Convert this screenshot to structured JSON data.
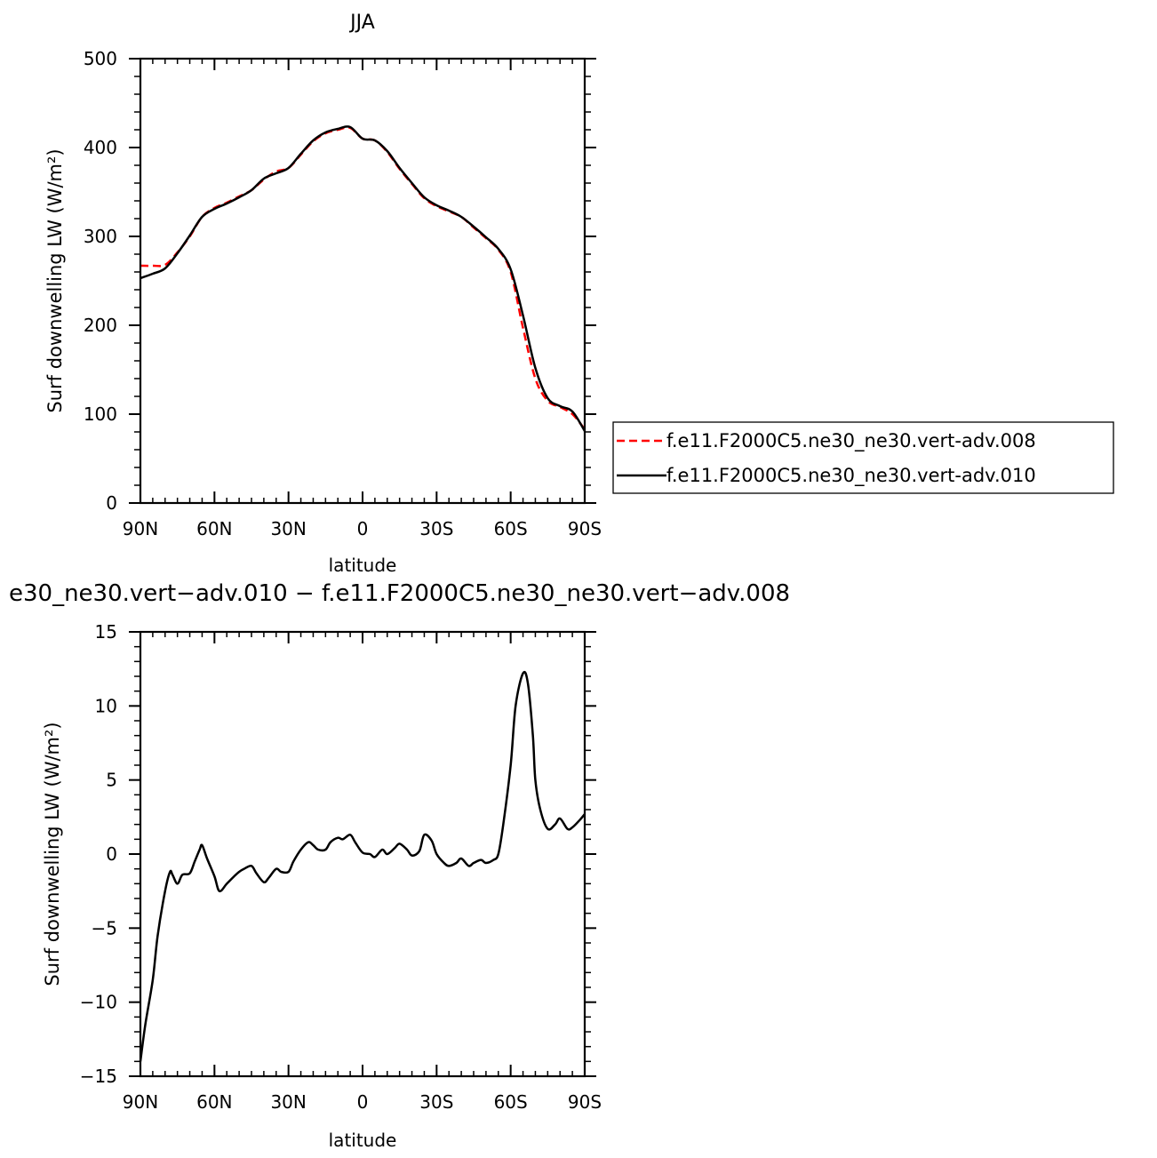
{
  "chart_data": [
    {
      "type": "line",
      "title": "JJA",
      "xlabel": "latitude",
      "ylabel": "Surf downwelling LW (W/m²)",
      "xlim": [
        -90,
        90
      ],
      "ylim": [
        0,
        500
      ],
      "x_ticks": [
        {
          "value": -90,
          "label": "90N"
        },
        {
          "value": -60,
          "label": "60N"
        },
        {
          "value": -30,
          "label": "30N"
        },
        {
          "value": 0,
          "label": "0"
        },
        {
          "value": 30,
          "label": "30S"
        },
        {
          "value": 60,
          "label": "60S"
        },
        {
          "value": 90,
          "label": "90S"
        }
      ],
      "y_ticks": [
        {
          "value": 0,
          "label": "0"
        },
        {
          "value": 100,
          "label": "100"
        },
        {
          "value": 200,
          "label": "200"
        },
        {
          "value": 300,
          "label": "300"
        },
        {
          "value": 400,
          "label": "400"
        },
        {
          "value": 500,
          "label": "500"
        }
      ],
      "grid": false,
      "legend_position": "right",
      "x": [
        -90,
        -85,
        -80,
        -75,
        -70,
        -65,
        -60,
        -55,
        -50,
        -45,
        -40,
        -35,
        -30,
        -25,
        -20,
        -15,
        -10,
        -5,
        0,
        5,
        10,
        15,
        20,
        25,
        30,
        35,
        40,
        45,
        50,
        55,
        60,
        65,
        70,
        75,
        80,
        85,
        90
      ],
      "series": [
        {
          "name": "f.e11.F2000C5.ne30_ne30.vert-adv.008",
          "color": "#ff0000",
          "dash": "dashed",
          "values": [
            267,
            267,
            268,
            282,
            300,
            322,
            332,
            338,
            345,
            352,
            364,
            373,
            377,
            392,
            407,
            416,
            420,
            422,
            410,
            408,
            395,
            376,
            359,
            343,
            334,
            328,
            322,
            310,
            298,
            285,
            260,
            197,
            140,
            115,
            108,
            100,
            83
          ]
        },
        {
          "name": "f.e11.F2000C5.ne30_ne30.vert-adv.010",
          "color": "#000000",
          "dash": "solid",
          "values": [
            253,
            258,
            264,
            281,
            301,
            322,
            331,
            337,
            344,
            352,
            365,
            371,
            377,
            393,
            408,
            417,
            421,
            423,
            410,
            408,
            396,
            377,
            360,
            344,
            335,
            329,
            322,
            311,
            299,
            286,
            263,
            211,
            152,
            118,
            109,
            103,
            81
          ]
        }
      ]
    },
    {
      "type": "line",
      "title": "e30_ne30.vert−adv.010 − f.e11.F2000C5.ne30_ne30.vert−adv.008",
      "xlabel": "latitude",
      "ylabel": "Surf downwelling LW (W/m²)",
      "xlim": [
        -90,
        90
      ],
      "ylim": [
        -15,
        15
      ],
      "x_ticks": [
        {
          "value": -90,
          "label": "90N"
        },
        {
          "value": -60,
          "label": "60N"
        },
        {
          "value": -30,
          "label": "30N"
        },
        {
          "value": 0,
          "label": "0"
        },
        {
          "value": 30,
          "label": "30S"
        },
        {
          "value": 60,
          "label": "60S"
        },
        {
          "value": 90,
          "label": "90S"
        }
      ],
      "y_ticks": [
        {
          "value": -15,
          "label": "−15"
        },
        {
          "value": -10,
          "label": "−10"
        },
        {
          "value": -5,
          "label": "−5"
        },
        {
          "value": 0,
          "label": "0"
        },
        {
          "value": 5,
          "label": "5"
        },
        {
          "value": 10,
          "label": "10"
        },
        {
          "value": 15,
          "label": "15"
        }
      ],
      "grid": false,
      "x": [
        -90,
        -88,
        -85,
        -83,
        -80,
        -78,
        -77,
        -75,
        -73,
        -70,
        -68,
        -66,
        -65,
        -63,
        -60,
        -58,
        -55,
        -52,
        -50,
        -48,
        -45,
        -43,
        -40,
        -38,
        -35,
        -33,
        -30,
        -28,
        -25,
        -22,
        -20,
        -18,
        -15,
        -13,
        -10,
        -8,
        -5,
        -3,
        0,
        3,
        5,
        8,
        10,
        13,
        15,
        18,
        20,
        23,
        25,
        28,
        30,
        33,
        35,
        38,
        40,
        43,
        45,
        48,
        50,
        53,
        55,
        57,
        60,
        62,
        65,
        67,
        69,
        70,
        72,
        75,
        78,
        80,
        83,
        85,
        88,
        90
      ],
      "series": [
        {
          "name": "",
          "color": "#000000",
          "dash": "solid",
          "values": [
            -14.0,
            -11.5,
            -8.5,
            -5.5,
            -2.5,
            -1.2,
            -1.4,
            -2.0,
            -1.4,
            -1.3,
            -0.5,
            0.3,
            0.6,
            -0.3,
            -1.5,
            -2.5,
            -2.0,
            -1.5,
            -1.2,
            -1.0,
            -0.8,
            -1.3,
            -1.9,
            -1.6,
            -1.0,
            -1.2,
            -1.2,
            -0.5,
            0.3,
            0.8,
            0.6,
            0.3,
            0.3,
            0.8,
            1.1,
            1.0,
            1.3,
            0.8,
            0.1,
            0.0,
            -0.2,
            0.3,
            0.0,
            0.4,
            0.7,
            0.3,
            -0.1,
            0.2,
            1.3,
            0.9,
            0.0,
            -0.6,
            -0.8,
            -0.6,
            -0.3,
            -0.8,
            -0.6,
            -0.4,
            -0.6,
            -0.4,
            0.0,
            2.0,
            6.0,
            10.0,
            12.2,
            11.5,
            8.0,
            5.0,
            3.0,
            1.7,
            2.0,
            2.4,
            1.7,
            1.8,
            2.3,
            2.7
          ]
        }
      ]
    }
  ]
}
